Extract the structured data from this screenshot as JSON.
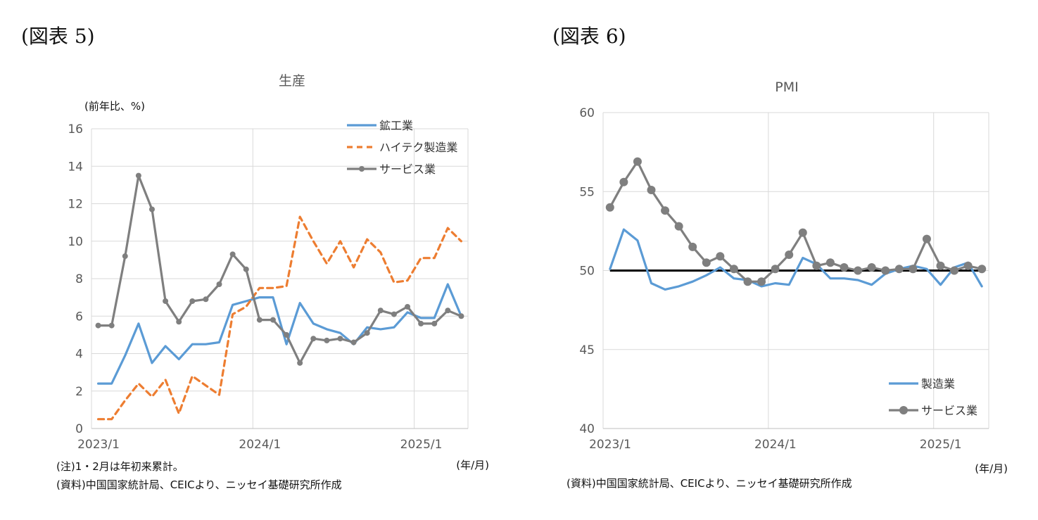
{
  "figures": [
    {
      "label": "(図表 5)"
    },
    {
      "label": "(図表 6)"
    }
  ],
  "notes": {
    "left_note": "(注)1・2月は年初来累計。",
    "left_source": "(資料)中国国家統計局、CEICより、ニッセイ基礎研究所作成",
    "right_source": "(資料)中国国家統計局、CEICより、ニッセイ基礎研究所作成"
  },
  "colors": {
    "blue": "#5b9bd5",
    "orange": "#ed7d31",
    "gray": "#7f7f7f",
    "black": "#000000",
    "grid": "#d9d9d9"
  },
  "chart_data": [
    {
      "type": "line",
      "title": "生産",
      "ylabel": "(前年比、%)",
      "xlabel": "(年/月)",
      "ylim": [
        0,
        16
      ],
      "yticks": [
        "0",
        "2",
        "4",
        "6",
        "8",
        "10",
        "12",
        "14",
        "16"
      ],
      "xticks": [
        "2023/1",
        "2024/1",
        "2025/1"
      ],
      "n_months": 28,
      "grid": "vertical and horizontal",
      "legend_position": "top-right",
      "series": [
        {
          "name": "鉱工業",
          "style": "solid",
          "color": "#5b9bd5",
          "x": [
            0,
            1,
            2,
            3,
            4,
            5,
            6,
            7,
            8,
            9,
            10,
            11,
            12,
            13,
            14,
            15,
            16,
            17,
            18,
            19,
            20,
            21,
            22,
            23,
            24,
            25,
            26,
            27
          ],
          "values": [
            2.4,
            2.4,
            3.9,
            5.6,
            3.5,
            4.4,
            3.7,
            4.5,
            4.5,
            4.6,
            6.6,
            6.8,
            7.0,
            7.0,
            4.5,
            6.7,
            5.6,
            5.3,
            5.1,
            4.5,
            5.4,
            5.3,
            5.4,
            6.2,
            5.9,
            5.9,
            7.7,
            6.0
          ]
        },
        {
          "name": "ハイテク製造業",
          "style": "dashed",
          "color": "#ed7d31",
          "x": [
            0,
            1,
            2,
            3,
            4,
            5,
            6,
            7,
            8,
            9,
            10,
            11,
            12,
            13,
            14,
            15,
            16,
            17,
            18,
            19,
            20,
            21,
            22,
            23,
            24,
            25,
            26,
            27
          ],
          "values": [
            0.5,
            0.5,
            1.5,
            2.4,
            1.7,
            2.6,
            0.8,
            2.8,
            2.3,
            1.8,
            6.1,
            6.5,
            7.5,
            7.5,
            7.6,
            11.3,
            10.0,
            8.8,
            10.0,
            8.6,
            10.1,
            9.4,
            7.8,
            7.9,
            9.1,
            9.1,
            10.7,
            10.0
          ]
        },
        {
          "name": "サービス業",
          "style": "marker",
          "color": "#7f7f7f",
          "x": [
            0,
            1,
            2,
            3,
            4,
            5,
            6,
            7,
            8,
            9,
            10,
            11,
            12,
            13,
            14,
            15,
            16,
            17,
            18,
            19,
            20,
            21,
            22,
            23,
            24,
            25,
            26,
            27
          ],
          "values": [
            5.5,
            5.5,
            9.2,
            13.5,
            11.7,
            6.8,
            5.7,
            6.8,
            6.9,
            7.7,
            9.3,
            8.5,
            5.8,
            5.8,
            5.0,
            3.5,
            4.8,
            4.7,
            4.8,
            4.6,
            5.1,
            6.3,
            6.1,
            6.5,
            5.6,
            5.6,
            6.3,
            6.0
          ]
        }
      ]
    },
    {
      "type": "line",
      "title": "PMI",
      "xlabel": "(年/月)",
      "ylim": [
        40,
        60
      ],
      "yticks": [
        "40",
        "45",
        "50",
        "55",
        "60"
      ],
      "xticks": [
        "2023/1",
        "2024/1",
        "2025/1"
      ],
      "n_months": 28,
      "reference_line": 50,
      "grid": "vertical and horizontal",
      "legend_position": "bottom-right",
      "series": [
        {
          "name": "製造業",
          "style": "solid",
          "color": "#5b9bd5",
          "x": [
            0,
            1,
            2,
            3,
            4,
            5,
            6,
            7,
            8,
            9,
            10,
            11,
            12,
            13,
            14,
            15,
            16,
            17,
            18,
            19,
            20,
            21,
            22,
            23,
            24,
            25,
            26,
            27
          ],
          "values": [
            50.1,
            52.6,
            51.9,
            49.2,
            48.8,
            49.0,
            49.3,
            49.7,
            50.2,
            49.5,
            49.4,
            49.0,
            49.2,
            49.1,
            50.8,
            50.4,
            49.5,
            49.5,
            49.4,
            49.1,
            49.8,
            50.1,
            50.3,
            50.1,
            49.1,
            50.2,
            50.5,
            49.0
          ]
        },
        {
          "name": "サービス業",
          "style": "marker",
          "color": "#7f7f7f",
          "x": [
            0,
            1,
            2,
            3,
            4,
            5,
            6,
            7,
            8,
            9,
            10,
            11,
            12,
            13,
            14,
            15,
            16,
            17,
            18,
            19,
            20,
            21,
            22,
            23,
            24,
            25,
            26,
            27
          ],
          "values": [
            54.0,
            55.6,
            56.9,
            55.1,
            53.8,
            52.8,
            51.5,
            50.5,
            50.9,
            50.1,
            49.3,
            49.3,
            50.1,
            51.0,
            52.4,
            50.3,
            50.5,
            50.2,
            50.0,
            50.2,
            50.0,
            50.1,
            50.1,
            52.0,
            50.3,
            50.0,
            50.3,
            50.1
          ]
        }
      ]
    }
  ]
}
